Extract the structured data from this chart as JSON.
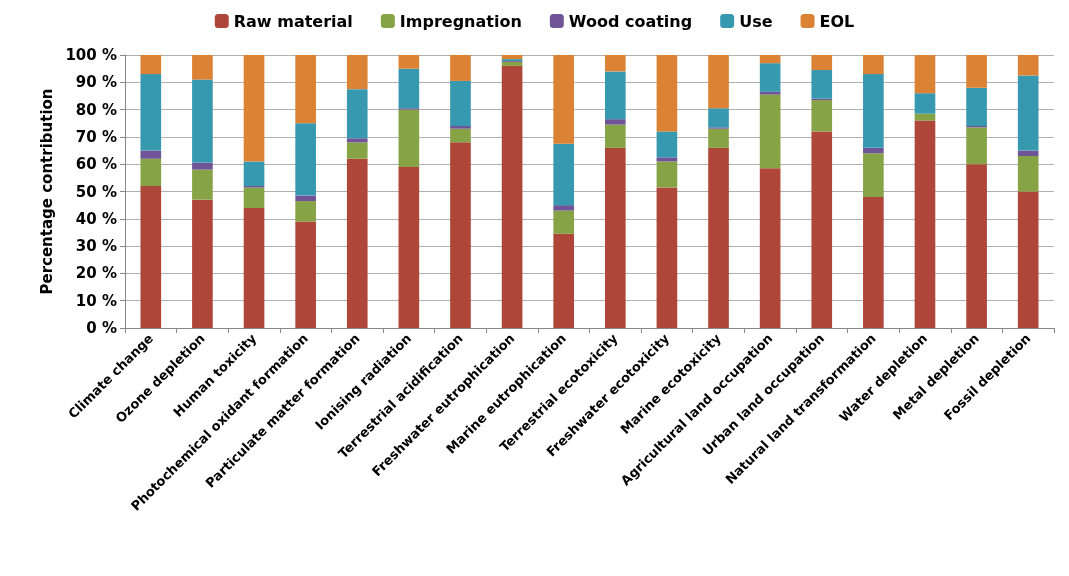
{
  "chart_data": {
    "type": "bar",
    "stacked": true,
    "ylabel": "Percentage contribution",
    "categories": [
      "Climate change",
      "Ozone depletion",
      "Human toxicity",
      "Photochemical oxidant formation",
      "Particulate matter formation",
      "Ionising radiation",
      "Terrestrial acidification",
      "Freshwater eutrophication",
      "Marine eutrophication",
      "Terrestrial ecotoxicity",
      "Freshwater ecotoxicity",
      "Marine ecotoxicity",
      "Agricultural land occupation",
      "Urban land occupation",
      "Natural land transformation",
      "Water depletion",
      "Metal depletion",
      "Fossil depletion"
    ],
    "series": [
      {
        "name": "Raw material",
        "color": "#ae4639",
        "values": [
          52,
          47,
          44,
          39,
          62,
          59,
          68,
          96,
          34.5,
          66,
          51.5,
          66,
          58.5,
          72,
          48,
          76,
          60,
          50
        ]
      },
      {
        "name": "Impregnation",
        "color": "#86a346",
        "values": [
          10,
          11,
          7.5,
          7.5,
          6,
          21,
          5,
          1.5,
          8.5,
          8.5,
          9.5,
          7,
          27,
          11.5,
          16,
          2.5,
          13.5,
          13
        ]
      },
      {
        "name": "Wood coating",
        "color": "#6f5597",
        "values": [
          3,
          2.5,
          0.5,
          2,
          1.5,
          0.5,
          1,
          0.3,
          2,
          2,
          1.5,
          0.5,
          1,
          0.5,
          2,
          0,
          0.5,
          2
        ]
      },
      {
        "name": "Use",
        "color": "#3799b0",
        "values": [
          28,
          30.5,
          9,
          26.5,
          18,
          14.5,
          16.5,
          0.7,
          22.5,
          17.5,
          9.5,
          7,
          10.5,
          10.5,
          27,
          7.5,
          14,
          27.5
        ]
      },
      {
        "name": "EOL",
        "color": "#dc8234",
        "values": [
          7,
          9,
          39,
          25,
          12.5,
          5,
          9.5,
          1.5,
          32.5,
          6,
          28,
          19.5,
          3,
          5.5,
          7,
          14,
          12,
          7.5
        ]
      }
    ],
    "ylim": [
      0,
      100
    ],
    "yticks": [
      {
        "value": 0,
        "label": "0 %"
      },
      {
        "value": 10,
        "label": "10 %"
      },
      {
        "value": 20,
        "label": "20 %"
      },
      {
        "value": 30,
        "label": "30 %"
      },
      {
        "value": 40,
        "label": "40 %"
      },
      {
        "value": 50,
        "label": "50 %"
      },
      {
        "value": 60,
        "label": "60 %"
      },
      {
        "value": 70,
        "label": "70 %"
      },
      {
        "value": 80,
        "label": "80 %"
      },
      {
        "value": 90,
        "label": "90 %"
      },
      {
        "value": 100,
        "label": "100 %"
      }
    ],
    "grid": "y",
    "legend": "top"
  }
}
